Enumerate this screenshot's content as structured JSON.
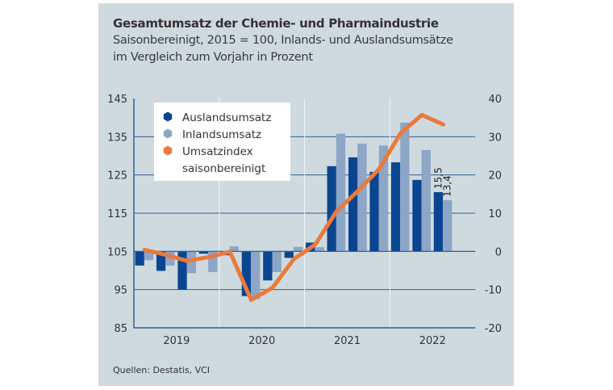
{
  "title": "Gesamtumsatz der Chemie- und Pharmaindustrie",
  "subtitle_line1": "Saisonbereinigt, 2015 = 100, Inlands- und Auslandsumsätze",
  "subtitle_line2": "im Vergleich zum Vorjahr in Prozent",
  "source": "Quellen: Destatis, VCI",
  "colors": {
    "background": "#cfdadf",
    "auslandsumsatz": "#0a4591",
    "inlandsumsatz": "#8da5c6",
    "umsatzindex": "#ea7a3c",
    "grid": "#2f5f9a"
  },
  "chart_data": {
    "type": "bar+line",
    "categories": [
      "2019 Q1",
      "2019 Q2",
      "2019 Q3",
      "2019 Q4",
      "2020 Q1",
      "2020 Q2",
      "2020 Q3",
      "2020 Q4",
      "2021 Q1",
      "2021 Q2",
      "2021 Q3",
      "2021 Q4",
      "2022 Q1",
      "2022 Q2",
      "2022 Q3"
    ],
    "year_labels": [
      "2019",
      "2020",
      "2021",
      "2022"
    ],
    "left_axis": {
      "ticks": [
        "145",
        "135",
        "125",
        "115",
        "105",
        "95",
        "85"
      ],
      "ylim": [
        85,
        145
      ]
    },
    "right_axis": {
      "ticks": [
        "40",
        "30",
        "20",
        "10",
        "0",
        "-10",
        "-20"
      ],
      "ylim": [
        -20,
        40
      ]
    },
    "grid": true,
    "legend": {
      "placement": "top-left",
      "entries": [
        "Auslandsumsatz",
        "Inlandsumsatz",
        "Umsatzindex",
        "saisonbereinigt"
      ]
    },
    "series": [
      {
        "name": "Auslandsumsatz",
        "axis": "right",
        "kind": "bar",
        "values": [
          -3.7,
          -5.1,
          -10.0,
          -0.6,
          -1.0,
          -11.7,
          -7.6,
          -1.7,
          2.3,
          22.3,
          24.6,
          20.8,
          23.3,
          18.7,
          15.5
        ]
      },
      {
        "name": "Inlandsumsatz",
        "axis": "right",
        "kind": "bar",
        "values": [
          -2.3,
          -3.7,
          -5.7,
          -5.4,
          1.3,
          -12.5,
          -5.4,
          1.2,
          1.1,
          30.8,
          28.2,
          27.7,
          33.7,
          26.5,
          13.4
        ]
      },
      {
        "name": "Umsatzindex saisonbereinigt",
        "axis": "left",
        "kind": "line",
        "values": [
          105.4,
          104.1,
          102.5,
          103.5,
          104.9,
          92.3,
          95.5,
          103.0,
          106.8,
          115.5,
          120.8,
          126.6,
          135.9,
          140.7,
          138.2
        ]
      }
    ],
    "annotations": [
      "15,5",
      "13,4"
    ]
  }
}
